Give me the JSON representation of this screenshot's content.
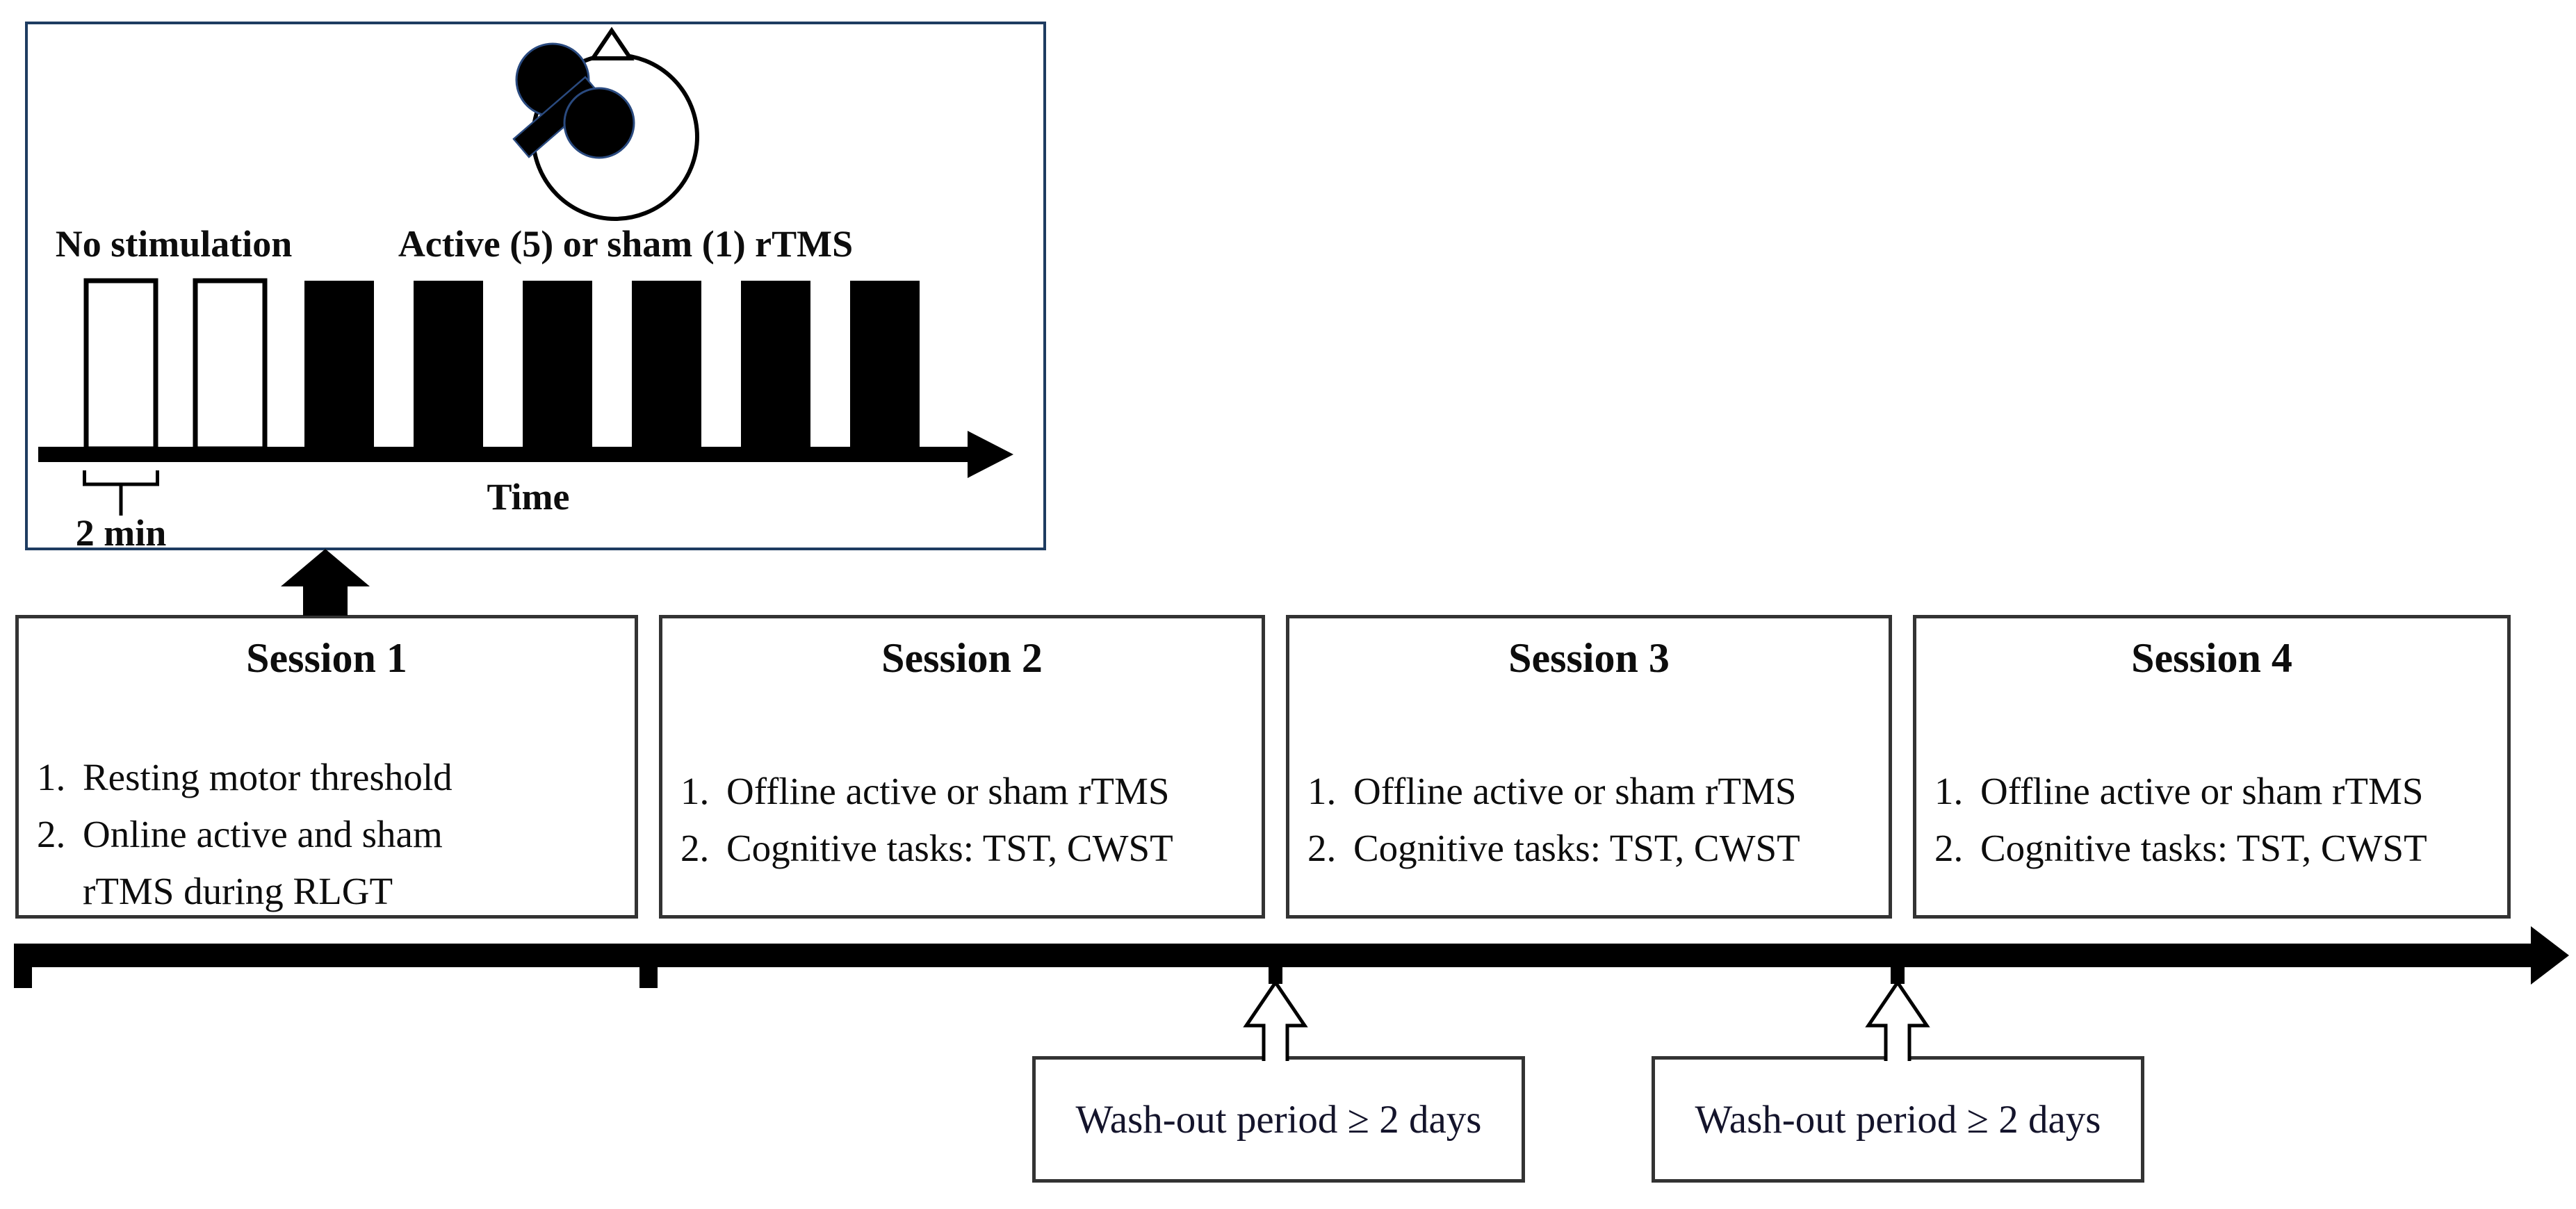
{
  "inset": {
    "coil_icon": "tms-figure8-coil-over-head",
    "no_stimulation_label": "No stimulation",
    "rtms_label": "Active (5) or sham (1) rTMS",
    "time_axis_label": "Time",
    "interval_label": "2 min",
    "bars": {
      "white_count": 2,
      "black_count": 6
    }
  },
  "sessions": [
    {
      "title": "Session 1",
      "items": [
        {
          "num": "1.",
          "text": "Resting motor threshold"
        },
        {
          "num": "2.",
          "text": "Online active and sham rTMS during RLGT"
        }
      ]
    },
    {
      "title": "Session 2",
      "items": [
        {
          "num": "1.",
          "text": "Offline active or sham rTMS"
        },
        {
          "num": "2.",
          "text": "Cognitive tasks: TST, CWST"
        }
      ]
    },
    {
      "title": "Session 3",
      "items": [
        {
          "num": "1.",
          "text": "Offline active or sham rTMS"
        },
        {
          "num": "2.",
          "text": "Cognitive tasks: TST, CWST"
        }
      ]
    },
    {
      "title": "Session 4",
      "items": [
        {
          "num": "1.",
          "text": "Offline active or sham rTMS"
        },
        {
          "num": "2.",
          "text": "Cognitive tasks: TST, CWST"
        }
      ]
    }
  ],
  "washout_boxes": [
    {
      "label": "Wash-out period ≥ 2 days"
    },
    {
      "label": "Wash-out period ≥ 2 days"
    }
  ],
  "colors": {
    "inset_border": "#1e3c61",
    "box_border": "#333333",
    "coil_outline_accent": "#2a4a7f",
    "ink": "#000000"
  }
}
